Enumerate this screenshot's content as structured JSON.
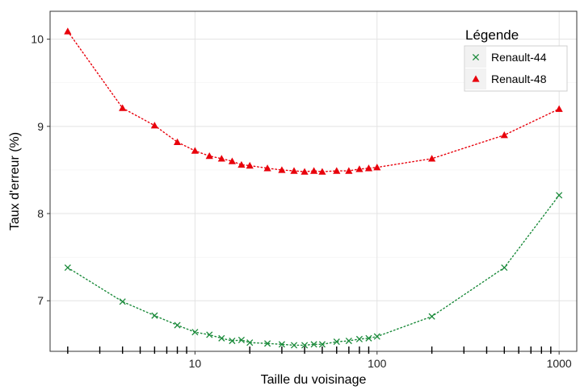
{
  "chart_data": {
    "type": "line",
    "title": "",
    "xlabel": "Taille du voisinage",
    "ylabel": "Taux d'erreur (%)",
    "x_scale": "log",
    "xlim": [
      1.6,
      1250
    ],
    "ylim": [
      6.42,
      10.32
    ],
    "x_ticks": [
      10,
      100,
      1000
    ],
    "x_tick_labels": [
      "10",
      "100",
      "1000"
    ],
    "y_ticks": [
      7,
      8,
      9,
      10
    ],
    "y_tick_labels": [
      "7",
      "8",
      "9",
      "10"
    ],
    "grid": true,
    "legend": {
      "title": "Légende",
      "position": "top-right"
    },
    "series": [
      {
        "name": "Renault-44",
        "color": "#1a8a3a",
        "marker": "x",
        "line": "dotted",
        "x": [
          2,
          4,
          6,
          8,
          10,
          12,
          14,
          16,
          18,
          20,
          25,
          30,
          35,
          40,
          45,
          50,
          60,
          70,
          80,
          90,
          100,
          200,
          500,
          1000
        ],
        "y": [
          7.38,
          6.99,
          6.83,
          6.72,
          6.64,
          6.61,
          6.57,
          6.54,
          6.55,
          6.52,
          6.51,
          6.5,
          6.49,
          6.49,
          6.5,
          6.5,
          6.53,
          6.54,
          6.56,
          6.57,
          6.59,
          6.82,
          7.38,
          8.21
        ]
      },
      {
        "name": "Renault-48",
        "color": "#e8000b",
        "marker": "triangle",
        "line": "dotted",
        "x": [
          2,
          4,
          6,
          8,
          10,
          12,
          14,
          16,
          18,
          20,
          25,
          30,
          35,
          40,
          45,
          50,
          60,
          70,
          80,
          90,
          100,
          200,
          500,
          1000
        ],
        "y": [
          10.09,
          9.21,
          9.01,
          8.82,
          8.72,
          8.66,
          8.63,
          8.6,
          8.56,
          8.55,
          8.52,
          8.5,
          8.49,
          8.48,
          8.49,
          8.48,
          8.49,
          8.49,
          8.51,
          8.52,
          8.53,
          8.63,
          8.9,
          9.2
        ]
      }
    ]
  }
}
